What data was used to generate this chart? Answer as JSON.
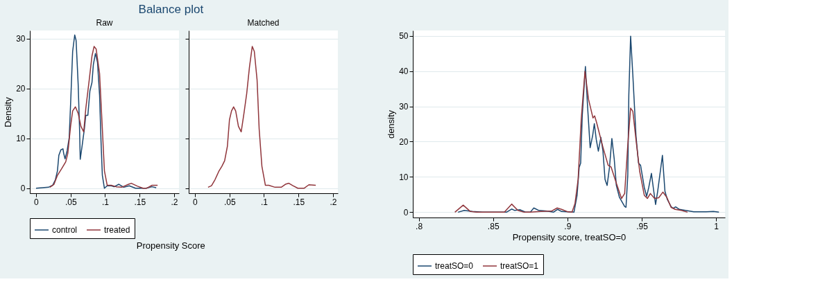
{
  "chart_data": [
    {
      "type": "line",
      "title": "Balance plot",
      "subtitle": "Raw",
      "xlabel": "Propensity Score",
      "ylabel": "Density",
      "xlim": [
        -0.009,
        0.207
      ],
      "ylim": [
        -1,
        31.6
      ],
      "xticks": [
        0,
        {
          "value": 0.05,
          "label": ".05"
        },
        {
          "value": 0.1,
          "label": ".1"
        },
        {
          "value": 0.15,
          "label": ".15"
        },
        {
          "value": 0.2,
          "label": ".2"
        }
      ],
      "yticks": [
        0,
        10,
        20,
        30
      ],
      "grid": "y",
      "legend": "bottom",
      "line_style": "solid",
      "series": [
        {
          "name": "control",
          "color": "#1a476f",
          "x": [
            0,
            0.018,
            0.024,
            0.028,
            0.031,
            0.033,
            0.036,
            0.039,
            0.04,
            0.042,
            0.045,
            0.048,
            0.05,
            0.053,
            0.056,
            0.058,
            0.061,
            0.063,
            0.064,
            0.067,
            0.07,
            0.072,
            0.075,
            0.078,
            0.081,
            0.083,
            0.086,
            0.089,
            0.092,
            0.094,
            0.096,
            0.099,
            0.103,
            0.109,
            0.113,
            0.12,
            0.127,
            0.135,
            0.144,
            0.153,
            0.159,
            0.168,
            0.174
          ],
          "values": [
            0,
            0.2,
            0.6,
            1.7,
            3.5,
            6.6,
            7.7,
            7.9,
            7.0,
            5.9,
            7.5,
            10.1,
            16.8,
            27.4,
            30.7,
            29.6,
            20.8,
            11.9,
            5.8,
            8.8,
            11.9,
            14.6,
            14.6,
            19.5,
            21.2,
            24.8,
            27.0,
            25.2,
            18.6,
            9.7,
            2.6,
            0,
            0.5,
            0.5,
            0.3,
            0.8,
            0.2,
            0.5,
            0,
            0,
            0,
            0.3,
            0.1
          ]
        },
        {
          "name": "treated",
          "color": "#90353b",
          "x": [
            0.02,
            0.026,
            0.031,
            0.037,
            0.043,
            0.046,
            0.05,
            0.053,
            0.057,
            0.061,
            0.065,
            0.069,
            0.072,
            0.077,
            0.081,
            0.084,
            0.087,
            0.092,
            0.096,
            0.099,
            0.103,
            0.109,
            0.116,
            0.124,
            0.134,
            0.138,
            0.147,
            0.155,
            0.16,
            0.168,
            0.176
          ],
          "values": [
            0.2,
            0.8,
            2.6,
            3.9,
            5.3,
            7.0,
            12.4,
            15.5,
            16.3,
            15.0,
            12.4,
            11.3,
            15.9,
            21.7,
            26.5,
            28.4,
            27.9,
            23.0,
            11.9,
            3.5,
            0.6,
            0.6,
            0.3,
            0.2,
            0.8,
            1.0,
            0.4,
            0,
            0,
            0.6,
            0.6
          ]
        }
      ]
    },
    {
      "type": "line",
      "subtitle": "Matched",
      "xlim": [
        -0.009,
        0.207
      ],
      "ylim": [
        -1,
        31.6
      ],
      "xticks": [
        0,
        {
          "value": 0.05,
          "label": ".05"
        },
        {
          "value": 0.1,
          "label": ".1"
        },
        {
          "value": 0.15,
          "label": ".15"
        },
        {
          "value": 0.2,
          "label": ".2"
        }
      ],
      "yticks": [
        {
          "value": 0,
          "label": null
        },
        {
          "value": 10,
          "label": null
        },
        {
          "value": 20,
          "label": null
        },
        {
          "value": 30,
          "label": null
        }
      ],
      "tick_labels": "x",
      "grid": "y",
      "line_style": "solid",
      "x": [
        0.019,
        0.024,
        0.029,
        0.035,
        0.039,
        0.043,
        0.047,
        0.05,
        0.053,
        0.056,
        0.059,
        0.063,
        0.067,
        0.071,
        0.075,
        0.079,
        0.083,
        0.086,
        0.09,
        0.093,
        0.097,
        0.102,
        0.107,
        0.116,
        0.125,
        0.131,
        0.136,
        0.142,
        0.149,
        0.158,
        0.165,
        0.175
      ],
      "series": [
        {
          "color": "#90353b",
          "values": [
            0.2,
            0.5,
            1.7,
            3.5,
            4.4,
            5.5,
            8.4,
            13.7,
            15.5,
            16.3,
            15.5,
            12.4,
            11.3,
            15.0,
            19.0,
            24.3,
            28.4,
            27.4,
            21.7,
            11.9,
            4.4,
            0.6,
            0.6,
            0.2,
            0.2,
            0.8,
            1.0,
            0.5,
            0,
            0,
            0.7,
            0.6
          ]
        }
      ]
    },
    {
      "type": "line",
      "xlabel": "Propensity score, treatSO=0",
      "ylabel": "density",
      "xlim": [
        0.796,
        1.006
      ],
      "ylim": [
        -1.5,
        51.5
      ],
      "xticks": [
        {
          "value": 0.8,
          "label": ".8"
        },
        {
          "value": 0.85,
          "label": ".85"
        },
        {
          "value": 0.9,
          "label": ".9"
        },
        {
          "value": 0.95,
          "label": ".95"
        },
        1
      ],
      "yticks": [
        0,
        10,
        20,
        30,
        40,
        50
      ],
      "grid": "y",
      "legend": "bottom",
      "line_style": "solid",
      "series": [
        {
          "name": "treatSO=0",
          "color": "#1a476f",
          "x": [
            0.8264,
            0.8306,
            0.836,
            0.843,
            0.859,
            0.8625,
            0.8646,
            0.868,
            0.872,
            0.875,
            0.8774,
            0.8808,
            0.8864,
            0.8906,
            0.8933,
            0.8961,
            0.9044,
            0.9065,
            0.9079,
            0.9089,
            0.91,
            0.9121,
            0.9135,
            0.9153,
            0.917,
            0.9181,
            0.9194,
            0.9208,
            0.9225,
            0.9239,
            0.9253,
            0.9267,
            0.9283,
            0.9299,
            0.9315,
            0.9329,
            0.935,
            0.9385,
            0.9394,
            0.9406,
            0.9413,
            0.9425,
            0.944,
            0.9461,
            0.9478,
            0.9492,
            0.9517,
            0.9533,
            0.9547,
            0.9565,
            0.9579,
            0.9593,
            0.9607,
            0.9625,
            0.9639,
            0.9656,
            0.9672,
            0.9697,
            0.9711,
            0.9728,
            0.9753,
            0.9794,
            0.985,
            0.9933,
            0.9982,
            1.0019
          ],
          "values": [
            0,
            0.5,
            0.2,
            0,
            0,
            0.9,
            0.5,
            0.7,
            0,
            0,
            1.2,
            0.5,
            0.3,
            0,
            0.8,
            0.2,
            0,
            4.8,
            12.7,
            13.9,
            27.5,
            41.3,
            30.3,
            18.3,
            21.8,
            25.1,
            20.6,
            17.3,
            21.2,
            17.3,
            9.3,
            7.6,
            12.7,
            20.9,
            15.0,
            7.6,
            4.2,
            1.6,
            1.4,
            10.5,
            33.2,
            49.9,
            38.9,
            21.8,
            13.9,
            13.3,
            7.0,
            4.5,
            7.0,
            11.0,
            6.5,
            2.2,
            5.9,
            11.6,
            16.1,
            5.9,
            3.6,
            1.6,
            1.1,
            1.5,
            0.8,
            0.5,
            0.1,
            0.1,
            0.2,
            0
          ]
        },
        {
          "name": "treatSO=1",
          "color": "#90353b",
          "x": [
            0.8243,
            0.8299,
            0.8347,
            0.8389,
            0.8576,
            0.8625,
            0.8667,
            0.8708,
            0.875,
            0.8822,
            0.8892,
            0.8931,
            0.8961,
            0.9003,
            0.9031,
            0.9051,
            0.9072,
            0.9093,
            0.9118,
            0.9142,
            0.9172,
            0.9183,
            0.9197,
            0.9218,
            0.9239,
            0.9274,
            0.9294,
            0.9329,
            0.9364,
            0.9385,
            0.9406,
            0.9425,
            0.944,
            0.9461,
            0.9486,
            0.9517,
            0.9538,
            0.9558,
            0.9586,
            0.9614,
            0.9642,
            0.9669,
            0.9697,
            0.9725,
            0.9767,
            0.9808
          ],
          "values": [
            0,
            2.0,
            0.2,
            0,
            0,
            2.3,
            0.5,
            0,
            0,
            0.2,
            0.3,
            1.2,
            0.8,
            0.1,
            0,
            2.5,
            9.3,
            26.4,
            39.9,
            32.0,
            26.7,
            27.3,
            25.3,
            21.8,
            18.4,
            13.3,
            12.8,
            8.2,
            3.9,
            5.3,
            19.0,
            29.5,
            28.6,
            20.6,
            11.6,
            4.8,
            3.9,
            5.3,
            3.9,
            4.1,
            5.7,
            4.2,
            1.4,
            0.8,
            0.5,
            0
          ]
        }
      ]
    }
  ]
}
